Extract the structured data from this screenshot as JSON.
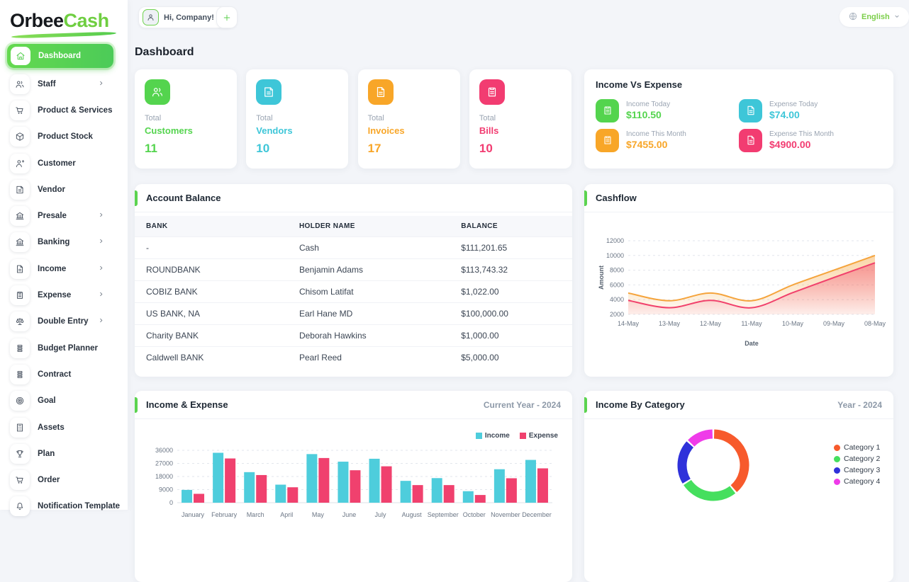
{
  "brand": {
    "name_primary": "Orbee",
    "name_secondary": "Cash"
  },
  "topbar": {
    "user_greeting": "Hi, Company!",
    "add_button_label": "+",
    "language": "English"
  },
  "page_title": "Dashboard",
  "sidebar": {
    "items": [
      {
        "label": "Dashboard",
        "icon": "home",
        "active": true,
        "chevron": false
      },
      {
        "label": "Staff",
        "icon": "users",
        "active": false,
        "chevron": true
      },
      {
        "label": "Product & Services",
        "icon": "cart",
        "active": false,
        "chevron": false
      },
      {
        "label": "Product Stock",
        "icon": "box",
        "active": false,
        "chevron": false
      },
      {
        "label": "Customer",
        "icon": "user-plus",
        "active": false,
        "chevron": false
      },
      {
        "label": "Vendor",
        "icon": "note",
        "active": false,
        "chevron": false
      },
      {
        "label": "Presale",
        "icon": "bank",
        "active": false,
        "chevron": true
      },
      {
        "label": "Banking",
        "icon": "bank",
        "active": false,
        "chevron": true
      },
      {
        "label": "Income",
        "icon": "file",
        "active": false,
        "chevron": true
      },
      {
        "label": "Expense",
        "icon": "clipboard",
        "active": false,
        "chevron": true
      },
      {
        "label": "Double Entry",
        "icon": "scales",
        "active": false,
        "chevron": true
      },
      {
        "label": "Budget Planner",
        "icon": "stack",
        "active": false,
        "chevron": false
      },
      {
        "label": "Contract",
        "icon": "stack",
        "active": false,
        "chevron": false
      },
      {
        "label": "Goal",
        "icon": "target",
        "active": false,
        "chevron": false
      },
      {
        "label": "Assets",
        "icon": "calculator",
        "active": false,
        "chevron": false
      },
      {
        "label": "Plan",
        "icon": "trophy",
        "active": false,
        "chevron": false
      },
      {
        "label": "Order",
        "icon": "cart",
        "active": false,
        "chevron": false
      },
      {
        "label": "Notification Template",
        "icon": "bell",
        "active": false,
        "chevron": false
      }
    ]
  },
  "stat_cards": [
    {
      "label_top": "Total",
      "label": "Customers",
      "value": "11",
      "color": "#54d44e",
      "icon": "users"
    },
    {
      "label_top": "Total",
      "label": "Vendors",
      "value": "10",
      "color": "#3ec6d8",
      "icon": "note"
    },
    {
      "label_top": "Total",
      "label": "Invoices",
      "value": "17",
      "color": "#f8a628",
      "icon": "file"
    },
    {
      "label_top": "Total",
      "label": "Bills",
      "value": "10",
      "color": "#f23c71",
      "icon": "clipboard"
    }
  ],
  "income_vs_expense": {
    "title": "Income Vs Expense",
    "items": [
      {
        "label": "Income Today",
        "value": "$110.50",
        "color": "#54d44e",
        "icon": "clipboard"
      },
      {
        "label": "Expense Today",
        "value": "$74.00",
        "color": "#3ec6d8",
        "icon": "file"
      },
      {
        "label": "Income This Month",
        "value": "$7455.00",
        "color": "#f8a628",
        "icon": "clipboard"
      },
      {
        "label": "Expense This Month",
        "value": "$4900.00",
        "color": "#f23c71",
        "icon": "file"
      }
    ]
  },
  "account_balance": {
    "title": "Account Balance",
    "columns": [
      "BANK",
      "HOLDER NAME",
      "BALANCE"
    ],
    "rows": [
      [
        "-",
        "Cash",
        "$111,201.65"
      ],
      [
        "ROUNDBANK",
        "Benjamin Adams",
        "$113,743.32"
      ],
      [
        "COBIZ BANK",
        "Chisom Latifat",
        "$1,022.00"
      ],
      [
        "US BANK, NA",
        "Earl Hane MD",
        "$100,000.00"
      ],
      [
        "Charity BANK",
        "Deborah Hawkins",
        "$1,000.00"
      ],
      [
        "Caldwell BANK",
        "Pearl Reed",
        "$5,000.00"
      ]
    ]
  },
  "chart_data": [
    {
      "id": "cashflow",
      "type": "area",
      "title": "Cashflow",
      "x": [
        "14-May",
        "13-May",
        "12-May",
        "11-May",
        "10-May",
        "09-May",
        "08-May"
      ],
      "series": [
        {
          "name": "Income",
          "color": "#f5a43c",
          "values": [
            4900,
            3850,
            4900,
            3850,
            6000,
            8000,
            10000
          ]
        },
        {
          "name": "Expense",
          "color": "#f1416c",
          "values": [
            3900,
            2900,
            3900,
            2900,
            4950,
            7000,
            9000
          ]
        }
      ],
      "xlabel": "Date",
      "ylabel": "Amount",
      "ylim": [
        2000,
        12000
      ],
      "yticks": [
        2000,
        4000,
        6000,
        8000,
        10000,
        12000
      ],
      "grid": true,
      "legend_position": "none"
    },
    {
      "id": "income_expense",
      "type": "bar",
      "title": "Income & Expense",
      "subtitle": "Current Year - 2024",
      "categories": [
        "January",
        "February",
        "March",
        "April",
        "May",
        "June",
        "July",
        "August",
        "September",
        "October",
        "November",
        "December"
      ],
      "series": [
        {
          "name": "Income",
          "color": "#4ecddc",
          "values": [
            8800,
            34300,
            21000,
            12400,
            33400,
            28200,
            30200,
            15000,
            16900,
            7900,
            23000,
            29400
          ]
        },
        {
          "name": "Expense",
          "color": "#f0416e",
          "values": [
            6100,
            30400,
            19000,
            10600,
            30700,
            22300,
            25000,
            12100,
            12100,
            5300,
            16800,
            23600
          ]
        }
      ],
      "xlabel": "",
      "ylabel": "",
      "ylim": [
        0,
        36000
      ],
      "yticks": [
        0,
        9000,
        18000,
        27000,
        36000
      ],
      "grid": true,
      "legend_position": "top-right"
    },
    {
      "id": "income_by_category",
      "type": "pie",
      "title": "Income By Category",
      "subtitle": "Year - 2024",
      "labels": [
        "Category 1",
        "Category 2",
        "Category 3",
        "Category 4"
      ],
      "values": [
        39,
        27,
        21,
        13
      ],
      "colors": [
        "#f75a2c",
        "#45df5e",
        "#2f31da",
        "#ef3be9"
      ],
      "legend_position": "right"
    }
  ]
}
